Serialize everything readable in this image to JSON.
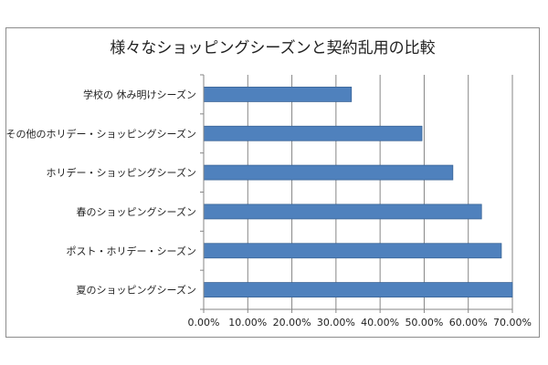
{
  "chart_data": {
    "type": "bar",
    "orientation": "horizontal",
    "title": "様々なショッピングシーズンと契約乱用の比較",
    "categories": [
      "学校の 休み明けシーズン",
      "その他のホリデー・ショッピングシーズン",
      "ホリデー・ショッピングシーズン",
      "春のショッピングシーズン",
      "ポスト・ホリデー・シーズン",
      "夏のショッピングシーズン"
    ],
    "values": [
      33.5,
      49.5,
      56.5,
      63,
      67.5,
      70
    ],
    "xlim": [
      0,
      70
    ],
    "xticks": [
      0,
      10,
      20,
      30,
      40,
      50,
      60,
      70
    ],
    "xtick_labels": [
      "0.00%",
      "10.00%",
      "20.00%",
      "30.00%",
      "40.00%",
      "50.00%",
      "60.00%",
      "70.00%"
    ],
    "xlabel": "",
    "ylabel": "",
    "grid": true,
    "bar_color": "#4f81bd",
    "bar_edge_color": "#3a6496",
    "grid_color": "#868686"
  }
}
